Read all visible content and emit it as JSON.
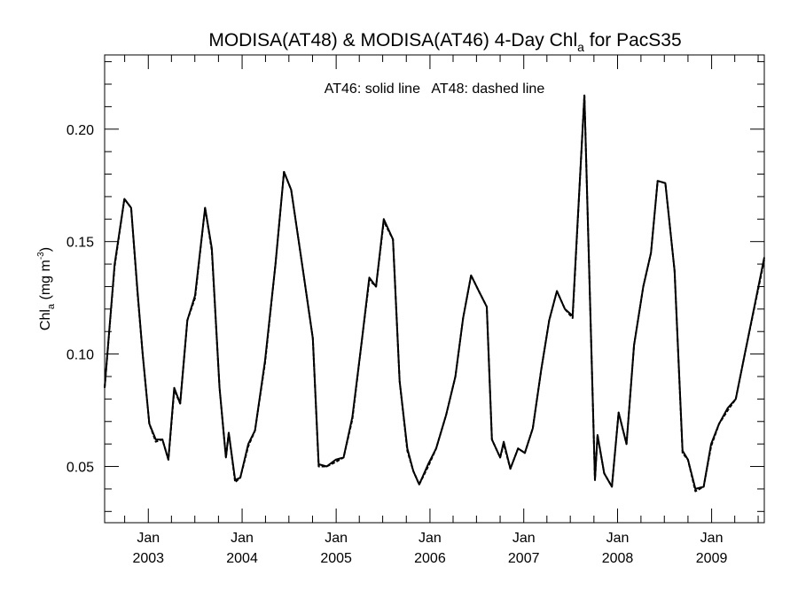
{
  "chart_data": {
    "type": "line",
    "title": "MODISA(AT48) & MODISA(AT46) 4-Day Chl",
    "title_subscript": "a",
    "title_suffix": " for PacS35",
    "ylabel": "Chl",
    "ylabel_subscript": "a",
    "ylabel_unit": " (mg m",
    "ylabel_unit_sup": "-3",
    "ylabel_close": ")",
    "annotation": "AT46: solid line   AT48: dashed line",
    "ylim": [
      0.025,
      0.233
    ],
    "xlim": [
      "2002-07-15",
      "2009-07-25"
    ],
    "yticks": [
      0.05,
      0.1,
      0.15,
      0.2
    ],
    "ytick_labels": [
      "0.05",
      "0.10",
      "0.15",
      "0.20"
    ],
    "xticks": [
      {
        "date": "2003-01-01",
        "month": "Jan",
        "year": "2003"
      },
      {
        "date": "2004-01-01",
        "month": "Jan",
        "year": "2004"
      },
      {
        "date": "2005-01-01",
        "month": "Jan",
        "year": "2005"
      },
      {
        "date": "2006-01-01",
        "month": "Jan",
        "year": "2006"
      },
      {
        "date": "2007-01-01",
        "month": "Jan",
        "year": "2007"
      },
      {
        "date": "2008-01-01",
        "month": "Jan",
        "year": "2008"
      },
      {
        "date": "2009-01-01",
        "month": "Jan",
        "year": "2009"
      }
    ],
    "grid": false,
    "series": [
      {
        "name": "AT46",
        "style": "solid",
        "color": "#000000",
        "points": [
          [
            "2002-07-15",
            0.085
          ],
          [
            "2002-08-23",
            0.14
          ],
          [
            "2002-09-30",
            0.169
          ],
          [
            "2002-10-26",
            0.165
          ],
          [
            "2002-11-20",
            0.128
          ],
          [
            "2002-12-10",
            0.1
          ],
          [
            "2003-01-05",
            0.069
          ],
          [
            "2003-01-30",
            0.062
          ],
          [
            "2003-02-25",
            0.062
          ],
          [
            "2003-03-20",
            0.053
          ],
          [
            "2003-04-12",
            0.085
          ],
          [
            "2003-05-05",
            0.078
          ],
          [
            "2003-06-02",
            0.115
          ],
          [
            "2003-07-02",
            0.126
          ],
          [
            "2003-08-10",
            0.165
          ],
          [
            "2003-09-05",
            0.147
          ],
          [
            "2003-10-05",
            0.085
          ],
          [
            "2003-10-30",
            0.054
          ],
          [
            "2003-11-10",
            0.065
          ],
          [
            "2003-12-05",
            0.044
          ],
          [
            "2003-12-25",
            0.045
          ],
          [
            "2004-01-25",
            0.06
          ],
          [
            "2004-02-20",
            0.066
          ],
          [
            "2004-03-30",
            0.097
          ],
          [
            "2004-05-10",
            0.14
          ],
          [
            "2004-06-12",
            0.181
          ],
          [
            "2004-07-10",
            0.173
          ],
          [
            "2004-08-25",
            0.137
          ],
          [
            "2004-10-02",
            0.107
          ],
          [
            "2004-10-25",
            0.051
          ],
          [
            "2004-11-25",
            0.05
          ],
          [
            "2004-12-30",
            0.053
          ],
          [
            "2005-01-30",
            0.054
          ],
          [
            "2005-03-05",
            0.072
          ],
          [
            "2005-04-10",
            0.105
          ],
          [
            "2005-05-10",
            0.134
          ],
          [
            "2005-06-05",
            0.13
          ],
          [
            "2005-07-05",
            0.16
          ],
          [
            "2005-08-10",
            0.151
          ],
          [
            "2005-09-05",
            0.088
          ],
          [
            "2005-10-05",
            0.058
          ],
          [
            "2005-10-28",
            0.048
          ],
          [
            "2005-11-20",
            0.042
          ],
          [
            "2005-12-25",
            0.051
          ],
          [
            "2006-01-25",
            0.058
          ],
          [
            "2006-03-05",
            0.073
          ],
          [
            "2006-04-10",
            0.09
          ],
          [
            "2006-05-10",
            0.116
          ],
          [
            "2006-06-10",
            0.135
          ],
          [
            "2006-07-10",
            0.128
          ],
          [
            "2006-08-10",
            0.121
          ],
          [
            "2006-08-30",
            0.062
          ],
          [
            "2006-10-01",
            0.054
          ],
          [
            "2006-10-15",
            0.061
          ],
          [
            "2006-11-10",
            0.049
          ],
          [
            "2006-12-10",
            0.058
          ],
          [
            "2007-01-05",
            0.056
          ],
          [
            "2007-02-05",
            0.067
          ],
          [
            "2007-03-10",
            0.093
          ],
          [
            "2007-04-10",
            0.115
          ],
          [
            "2007-05-10",
            0.128
          ],
          [
            "2007-06-10",
            0.12
          ],
          [
            "2007-07-10",
            0.117
          ],
          [
            "2007-08-25",
            0.215
          ],
          [
            "2007-10-05",
            0.044
          ],
          [
            "2007-10-15",
            0.064
          ],
          [
            "2007-11-10",
            0.047
          ],
          [
            "2007-12-10",
            0.041
          ],
          [
            "2008-01-05",
            0.074
          ],
          [
            "2008-02-05",
            0.06
          ],
          [
            "2008-03-05",
            0.104
          ],
          [
            "2008-04-10",
            0.13
          ],
          [
            "2008-05-10",
            0.145
          ],
          [
            "2008-06-05",
            0.177
          ],
          [
            "2008-07-05",
            0.176
          ],
          [
            "2008-08-10",
            0.137
          ],
          [
            "2008-09-10",
            0.057
          ],
          [
            "2008-10-01",
            0.053
          ],
          [
            "2008-10-30",
            0.04
          ],
          [
            "2008-12-01",
            0.041
          ],
          [
            "2008-12-30",
            0.06
          ],
          [
            "2009-01-30",
            0.069
          ],
          [
            "2009-03-05",
            0.076
          ],
          [
            "2009-04-05",
            0.08
          ],
          [
            "2009-05-10",
            0.1
          ],
          [
            "2009-07-25",
            0.143
          ]
        ]
      },
      {
        "name": "AT48",
        "style": "dashed",
        "color": "#000000",
        "points": [
          [
            "2002-07-15",
            0.085
          ],
          [
            "2002-08-23",
            0.139
          ],
          [
            "2002-09-30",
            0.169
          ],
          [
            "2002-10-26",
            0.165
          ],
          [
            "2002-11-20",
            0.127
          ],
          [
            "2002-12-10",
            0.1
          ],
          [
            "2003-01-05",
            0.069
          ],
          [
            "2003-01-30",
            0.061
          ],
          [
            "2003-02-25",
            0.062
          ],
          [
            "2003-03-20",
            0.053
          ],
          [
            "2003-04-12",
            0.084
          ],
          [
            "2003-05-05",
            0.078
          ],
          [
            "2003-06-02",
            0.115
          ],
          [
            "2003-07-02",
            0.125
          ],
          [
            "2003-08-10",
            0.165
          ],
          [
            "2003-09-05",
            0.146
          ],
          [
            "2003-10-05",
            0.085
          ],
          [
            "2003-10-30",
            0.054
          ],
          [
            "2003-11-10",
            0.065
          ],
          [
            "2003-12-05",
            0.043
          ],
          [
            "2003-12-25",
            0.045
          ],
          [
            "2004-01-25",
            0.059
          ],
          [
            "2004-02-20",
            0.066
          ],
          [
            "2004-03-30",
            0.096
          ],
          [
            "2004-05-10",
            0.14
          ],
          [
            "2004-06-12",
            0.181
          ],
          [
            "2004-07-10",
            0.173
          ],
          [
            "2004-08-25",
            0.137
          ],
          [
            "2004-10-02",
            0.107
          ],
          [
            "2004-10-25",
            0.05
          ],
          [
            "2004-11-25",
            0.05
          ],
          [
            "2004-12-30",
            0.052
          ],
          [
            "2005-01-30",
            0.054
          ],
          [
            "2005-03-05",
            0.071
          ],
          [
            "2005-04-10",
            0.105
          ],
          [
            "2005-05-10",
            0.133
          ],
          [
            "2005-06-05",
            0.13
          ],
          [
            "2005-07-05",
            0.159
          ],
          [
            "2005-08-10",
            0.151
          ],
          [
            "2005-09-05",
            0.088
          ],
          [
            "2005-10-05",
            0.057
          ],
          [
            "2005-10-28",
            0.048
          ],
          [
            "2005-11-20",
            0.042
          ],
          [
            "2005-12-25",
            0.05
          ],
          [
            "2006-01-25",
            0.058
          ],
          [
            "2006-03-05",
            0.073
          ],
          [
            "2006-04-10",
            0.09
          ],
          [
            "2006-05-10",
            0.116
          ],
          [
            "2006-06-10",
            0.135
          ],
          [
            "2006-07-10",
            0.128
          ],
          [
            "2006-08-10",
            0.121
          ],
          [
            "2006-08-30",
            0.062
          ],
          [
            "2006-10-01",
            0.054
          ],
          [
            "2006-10-15",
            0.06
          ],
          [
            "2006-11-10",
            0.049
          ],
          [
            "2006-12-10",
            0.058
          ],
          [
            "2007-01-05",
            0.056
          ],
          [
            "2007-02-05",
            0.067
          ],
          [
            "2007-03-10",
            0.093
          ],
          [
            "2007-04-10",
            0.115
          ],
          [
            "2007-05-10",
            0.128
          ],
          [
            "2007-06-10",
            0.12
          ],
          [
            "2007-07-10",
            0.116
          ],
          [
            "2007-08-25",
            0.215
          ],
          [
            "2007-10-05",
            0.044
          ],
          [
            "2007-10-15",
            0.064
          ],
          [
            "2007-11-10",
            0.047
          ],
          [
            "2007-12-10",
            0.041
          ],
          [
            "2008-01-05",
            0.074
          ],
          [
            "2008-02-05",
            0.06
          ],
          [
            "2008-03-05",
            0.104
          ],
          [
            "2008-04-10",
            0.13
          ],
          [
            "2008-05-10",
            0.145
          ],
          [
            "2008-06-05",
            0.177
          ],
          [
            "2008-07-05",
            0.176
          ],
          [
            "2008-08-10",
            0.137
          ],
          [
            "2008-09-10",
            0.056
          ],
          [
            "2008-10-01",
            0.053
          ],
          [
            "2008-10-30",
            0.039
          ],
          [
            "2008-12-01",
            0.041
          ],
          [
            "2008-12-30",
            0.059
          ],
          [
            "2009-01-30",
            0.069
          ],
          [
            "2009-03-05",
            0.075
          ],
          [
            "2009-04-05",
            0.08
          ],
          [
            "2009-05-10",
            0.1
          ],
          [
            "2009-07-25",
            0.142
          ]
        ]
      }
    ]
  }
}
